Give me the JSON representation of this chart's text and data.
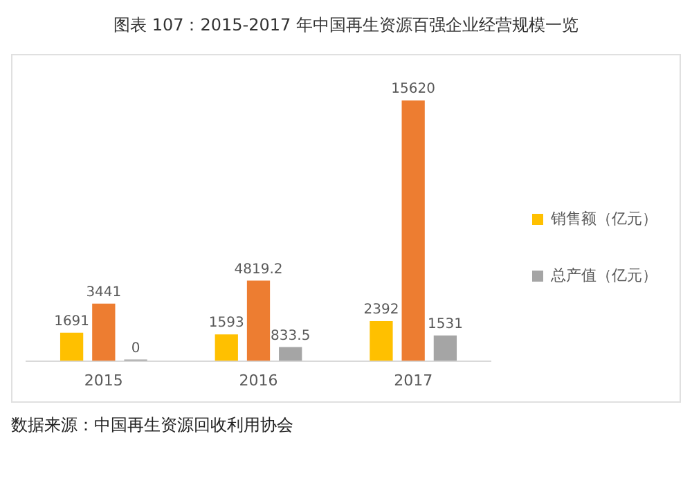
{
  "chart_data": {
    "type": "bar",
    "title": "图表 107：2015-2017 年中国再生资源百强企业经营规模一览",
    "categories": [
      "2015",
      "2016",
      "2017"
    ],
    "series": [
      {
        "name": "销售额（亿元）",
        "color": "#ffc000",
        "values": [
          1691,
          1593,
          2392
        ]
      },
      {
        "color": "#ed7d31",
        "values": [
          3441,
          4819.2,
          15620
        ]
      },
      {
        "name": "总产值（亿元）",
        "color": "#a5a5a5",
        "values": [
          0,
          833.5,
          1531
        ]
      }
    ],
    "data_labels": true,
    "grid": false,
    "legend": "right",
    "annotations": [
      "数据来源：中国再生资源回收利用协会"
    ]
  }
}
